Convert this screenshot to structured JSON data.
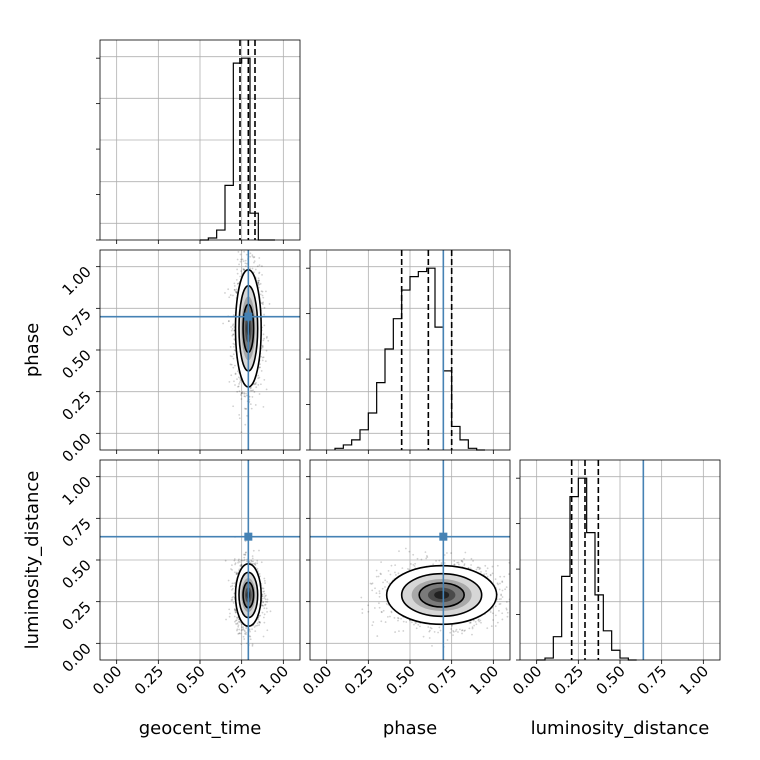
{
  "chart_data": {
    "type": "corner",
    "parameters": [
      "geocent_time",
      "phase",
      "luminosity_distance"
    ],
    "axis_range": [
      -0.1,
      1.1
    ],
    "ticks": [
      0.0,
      0.25,
      0.5,
      0.75,
      1.0
    ],
    "tick_labels": [
      "0.00",
      "0.25",
      "0.50",
      "0.75",
      "1.00"
    ],
    "injection": {
      "geocent_time": 0.79,
      "phase": 0.7,
      "luminosity_distance": 0.64
    },
    "injection_color": "#4682b4",
    "grid": true,
    "histograms": {
      "geocent_time": {
        "bin_edges": [
          0.5,
          0.55,
          0.6,
          0.65,
          0.7,
          0.75,
          0.8,
          0.85,
          0.9,
          0.95
        ],
        "counts": [
          0,
          2,
          10,
          55,
          178,
          183,
          27,
          0,
          0
        ],
        "quantiles": [
          0.74,
          0.79,
          0.83
        ]
      },
      "phase": {
        "bin_edges": [
          0.05,
          0.1,
          0.15,
          0.2,
          0.25,
          0.3,
          0.35,
          0.4,
          0.45,
          0.5,
          0.55,
          0.6,
          0.65,
          0.7,
          0.75,
          0.8,
          0.85,
          0.9,
          0.95
        ],
        "counts": [
          1,
          3,
          6,
          12,
          22,
          40,
          60,
          78,
          95,
          103,
          106,
          108,
          73,
          47,
          14,
          6,
          1,
          0
        ],
        "quantiles": [
          0.45,
          0.61,
          0.75
        ]
      },
      "luminosity_distance": {
        "bin_edges": [
          0.0,
          0.05,
          0.1,
          0.15,
          0.2,
          0.25,
          0.3,
          0.35,
          0.4,
          0.45,
          0.5,
          0.55,
          0.6
        ],
        "counts": [
          0,
          2,
          24,
          86,
          168,
          187,
          131,
          67,
          30,
          10,
          2,
          0
        ],
        "quantiles": [
          0.21,
          0.29,
          0.37
        ]
      }
    },
    "joint": [
      {
        "x": "geocent_time",
        "y": "phase",
        "center": [
          0.79,
          0.63
        ],
        "sigma": [
          0.035,
          0.16
        ],
        "contour_radii": [
          0.9,
          1.6,
          2.2
        ]
      },
      {
        "x": "geocent_time",
        "y": "luminosity_distance",
        "center": [
          0.79,
          0.29
        ],
        "sigma": [
          0.035,
          0.085
        ],
        "contour_radii": [
          0.9,
          1.6,
          2.2
        ]
      },
      {
        "x": "phase",
        "y": "luminosity_distance",
        "center": [
          0.69,
          0.29
        ],
        "sigma": [
          0.15,
          0.08
        ],
        "contour_radii": [
          0.9,
          1.6,
          2.2
        ]
      }
    ]
  }
}
